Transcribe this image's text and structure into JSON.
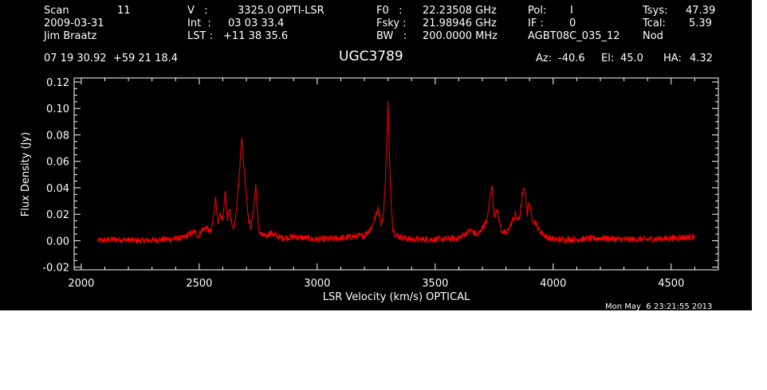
{
  "header": {
    "scan_label": "Scan",
    "scan_value": "11",
    "date": "2009-03-31",
    "observer": "Jim Braatz",
    "coords": "07 19 30.92  +59 21 18.4",
    "v_label": "V   :",
    "v_value": "3325.0 OPTI-LSR",
    "int_label": "Int  :",
    "int_value": "03 03 33.4",
    "lst_label": "LST :",
    "lst_value": "+11 38 35.6",
    "f0_label": "F0   :",
    "f0_value": "22.23508 GHz",
    "fsky_label": "Fsky :",
    "fsky_value": "21.98946 GHz",
    "bw_label": "BW   :",
    "bw_value": "200.0000 MHz",
    "pol_label": "Pol:",
    "pol_value": "I",
    "if_label": "IF :",
    "if_value": "0",
    "project": "AGBT08C_035_12",
    "tsys_label": "Tsys:",
    "tsys_value": "47.39",
    "tcal_label": "Tcal:",
    "tcal_value": "5.39",
    "mode": "Nod",
    "source": "UGC3789",
    "az_label": "Az:",
    "az_value": "-40.6",
    "el_label": "El:",
    "el_value": "45.0",
    "ha_label": "HA:",
    "ha_value": "4.32",
    "timestamp": "Mon May  6 23:21:55 2013"
  },
  "colors": {
    "background": "#000000",
    "axes": "#ffffff",
    "trace": "#ff0000"
  },
  "chart_data": {
    "type": "line",
    "title": "UGC3789",
    "xlabel": "LSR Velocity (km/s) OPTICAL",
    "ylabel": "Flux Density (Jy)",
    "xlim": [
      1970,
      4700
    ],
    "ylim": [
      -0.022,
      0.123
    ],
    "xticks": [
      "2000",
      "2500",
      "3000",
      "3500",
      "4000",
      "4500"
    ],
    "yticks": [
      "-0.02",
      "0.00",
      "0.02",
      "0.04",
      "0.06",
      "0.08",
      "0.10",
      "0.12"
    ],
    "grid": false,
    "series": [
      {
        "values_x": [
          2070,
          2150,
          2250,
          2350,
          2430,
          2480,
          2495,
          2510,
          2530,
          2550,
          2560,
          2570,
          2580,
          2590,
          2600,
          2610,
          2620,
          2630,
          2640,
          2650,
          2660,
          2670,
          2680,
          2690,
          2700,
          2710,
          2720,
          2730,
          2740,
          2750,
          2760,
          2780,
          2800,
          2850,
          2900,
          3000,
          3100,
          3200,
          3230,
          3250,
          3260,
          3270,
          3280,
          3290,
          3300,
          3310,
          3320,
          3330,
          3350,
          3400,
          3500,
          3600,
          3650,
          3680,
          3700,
          3720,
          3730,
          3740,
          3750,
          3760,
          3780,
          3800,
          3820,
          3840,
          3850,
          3860,
          3870,
          3880,
          3890,
          3900,
          3910,
          3920,
          3940,
          3970,
          4000,
          4100,
          4200,
          4300,
          4400,
          4500,
          4600
        ],
        "values_y": [
          0.0,
          0.001,
          0.0,
          0.001,
          0.002,
          0.007,
          0.003,
          0.008,
          0.01,
          0.006,
          0.018,
          0.033,
          0.012,
          0.02,
          0.015,
          0.039,
          0.015,
          0.025,
          0.01,
          0.012,
          0.03,
          0.05,
          0.08,
          0.055,
          0.035,
          0.015,
          0.01,
          0.025,
          0.042,
          0.01,
          0.005,
          0.003,
          0.006,
          0.002,
          0.003,
          0.001,
          0.002,
          0.004,
          0.01,
          0.02,
          0.025,
          0.012,
          0.018,
          0.05,
          0.104,
          0.04,
          0.01,
          0.005,
          0.003,
          0.001,
          0.001,
          0.002,
          0.008,
          0.004,
          0.01,
          0.015,
          0.03,
          0.043,
          0.018,
          0.025,
          0.008,
          0.005,
          0.012,
          0.02,
          0.015,
          0.02,
          0.035,
          0.041,
          0.02,
          0.03,
          0.016,
          0.015,
          0.008,
          0.003,
          0.001,
          0.001,
          0.002,
          0.001,
          0.001,
          0.002,
          0.003
        ]
      }
    ]
  }
}
